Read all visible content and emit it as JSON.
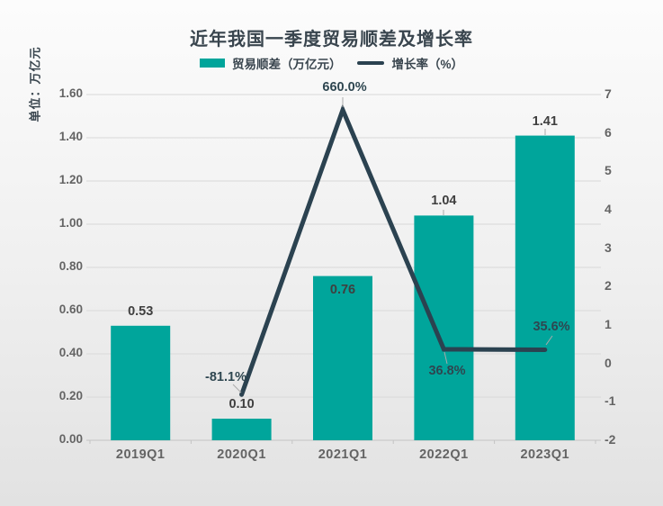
{
  "chart": {
    "title": "近年我国一季度贸易顺差及增长率",
    "unit_label": "单位：万亿元"
  },
  "colors": {
    "background_top": "#fcfcfc",
    "background_bottom": "#e2e2e2",
    "bar_teal": "#00a59b",
    "line_dark": "#2b4250",
    "title_text": "#39454e",
    "axis_text": "#646464",
    "bar_value_text": "#3f3f3f",
    "pct_value_text": "#2e4650",
    "gridline": "#d9d9d9",
    "axis_line": "#c4c4c4",
    "leader_line": "#aaaaaa"
  },
  "chart_data": {
    "type": "bar",
    "subtype": "combo-bar-line-dual-axis",
    "title": "近年我国一季度贸易顺差及增长率",
    "categories": [
      "2019Q1",
      "2020Q1",
      "2021Q1",
      "2022Q1",
      "2023Q1"
    ],
    "series": [
      {
        "name": "贸易顺差（万亿元）",
        "type": "bar",
        "y_axis": "left",
        "color": "#00a59b",
        "values": [
          0.53,
          0.1,
          0.76,
          1.04,
          1.41
        ],
        "data_labels": [
          "0.53",
          "0.10",
          "0.76",
          "1.04",
          "1.41"
        ]
      },
      {
        "name": "增长率（%）",
        "type": "line",
        "y_axis": "right",
        "color": "#2b4250",
        "values_percent": [
          null,
          -81.1,
          660.0,
          36.8,
          35.6
        ],
        "data_labels": [
          null,
          "-81.1%",
          "660.0%",
          "36.8%",
          "35.6%"
        ]
      }
    ],
    "y_axis_left": {
      "title": "单位：万亿元",
      "min": 0,
      "max": 1.6,
      "tick_labels": [
        "1.60",
        "1.40",
        "1.20",
        "1.00",
        "0.80",
        "0.60",
        "0.40",
        "0.20",
        "0.00"
      ]
    },
    "y_axis_right": {
      "min": -2,
      "max": 7,
      "tick_labels": [
        "7",
        "6",
        "5",
        "4",
        "3",
        "2",
        "1",
        "0",
        "-1",
        "-2"
      ]
    },
    "grid": true,
    "legend_position": "top"
  }
}
